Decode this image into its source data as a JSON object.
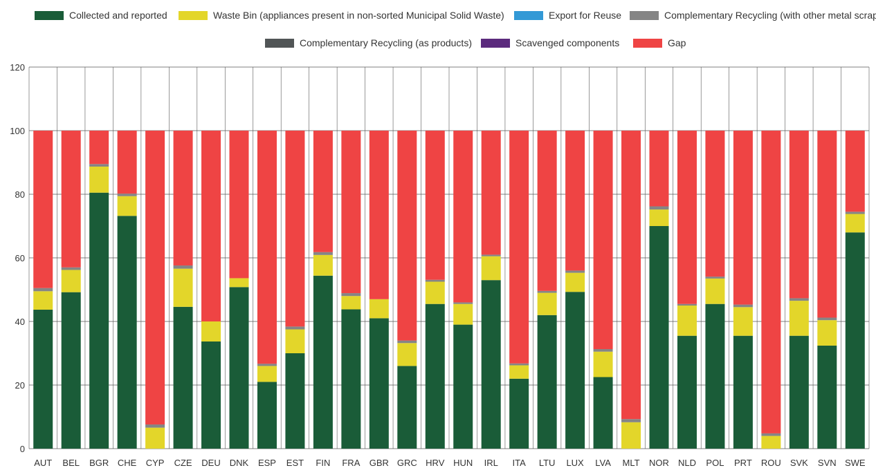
{
  "chart_data": {
    "type": "bar",
    "stacked": true,
    "title": "",
    "xlabel": "",
    "ylabel": "",
    "ylim": [
      0,
      120
    ],
    "yticks": [
      0,
      20,
      40,
      60,
      80,
      100,
      120
    ],
    "grid": true,
    "legend_position": "top",
    "categories": [
      "AUT",
      "BEL",
      "BGR",
      "CHE",
      "CYP",
      "CZE",
      "DEU",
      "DNK",
      "ESP",
      "EST",
      "FIN",
      "FRA",
      "GBR",
      "GRC",
      "HRV",
      "HUN",
      "IRL",
      "ITA",
      "LTU",
      "LUX",
      "LVA",
      "MLT",
      "NOR",
      "NLD",
      "POL",
      "PRT",
      "ROU",
      "SVK",
      "SVN",
      "SWE"
    ],
    "series": [
      {
        "name": "Collected and reported",
        "color": "#1a5c38",
        "values": [
          43.7,
          49.2,
          80.5,
          73.2,
          0,
          44.6,
          33.7,
          50.8,
          21,
          30,
          54.4,
          43.8,
          41,
          26,
          45.5,
          39,
          53,
          22,
          42,
          49.3,
          22.5,
          0,
          70,
          35.5,
          45.5,
          35.5,
          0,
          35.5,
          32.4,
          68
        ]
      },
      {
        "name": "Waste Bin (appliances present in non-sorted Municipal Solid Waste)",
        "color": "#e3d62a",
        "values": [
          5.8,
          7,
          8.2,
          6.2,
          6.6,
          12,
          6.3,
          2.8,
          5,
          7.5,
          6.5,
          4.2,
          6,
          7.2,
          7,
          6.5,
          7.5,
          4.2,
          7,
          6,
          8,
          8.3,
          5.2,
          9.5,
          8,
          9,
          4,
          11,
          8,
          5.8
        ]
      },
      {
        "name": "Export for Reuse",
        "color": "#3399d6",
        "values": [
          0,
          0,
          0,
          0,
          0,
          0,
          0,
          0,
          0,
          0,
          0,
          0,
          0,
          0,
          0,
          0,
          0,
          0,
          0,
          0,
          0,
          0,
          0,
          0,
          0,
          0,
          0,
          0,
          0,
          0
        ]
      },
      {
        "name": "Complementary Recycling (with other metal scrap)",
        "color": "#858585",
        "values": [
          1,
          0.8,
          0.8,
          0.8,
          1,
          1,
          0,
          0,
          0.7,
          0.9,
          0.9,
          0.9,
          0,
          0.8,
          0.6,
          0.5,
          0.5,
          0.6,
          0.6,
          0.7,
          0.8,
          1,
          1,
          0.5,
          0.6,
          0.8,
          0.8,
          0.8,
          0.8,
          0.7
        ]
      },
      {
        "name": "Complementary Recycling (as products)",
        "color": "#515556",
        "values": [
          0,
          0,
          0,
          0,
          0,
          0,
          0,
          0,
          0,
          0,
          0,
          0,
          0,
          0,
          0,
          0,
          0,
          0,
          0,
          0,
          0,
          0,
          0,
          0,
          0,
          0,
          0,
          0,
          0,
          0
        ]
      },
      {
        "name": "Scavenged components",
        "color": "#5b2a7d",
        "values": [
          0,
          0,
          0,
          0,
          0,
          0,
          0,
          0,
          0,
          0,
          0,
          0,
          0,
          0,
          0,
          0,
          0,
          0,
          0,
          0,
          0,
          0,
          0,
          0,
          0,
          0,
          0,
          0,
          0,
          0
        ]
      },
      {
        "name": "Gap",
        "color": "#ef4444",
        "values": [
          49.5,
          43,
          10.5,
          19.8,
          92.4,
          42.4,
          60,
          46.4,
          73.3,
          61.6,
          38.2,
          51.1,
          53,
          66,
          46.9,
          54,
          39,
          73.2,
          50.4,
          44,
          68.7,
          90.7,
          23.8,
          54.5,
          45.9,
          54.7,
          95.2,
          52.7,
          58.8,
          25.5
        ]
      }
    ]
  }
}
